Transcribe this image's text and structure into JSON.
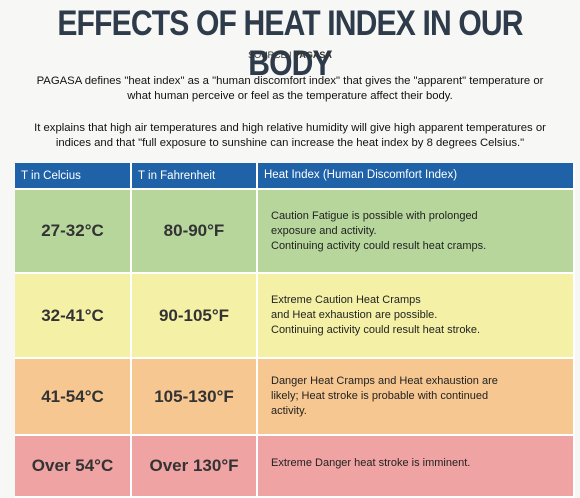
{
  "header": {
    "title": "EFFECTS OF HEAT INDEX IN OUR BODY",
    "source": [
      "SOURCE |",
      "PAGASA"
    ]
  },
  "paragraphs": [
    "PAGASA defines \"heat index\" as a \"human discomfort index\" that gives the \"apparent\" temperature or what human perceive or feel as the temperature affect their body.",
    "It explains that high air temperatures and high relative humidity will give high apparent temperatures or indices and that \"full exposure to sunshine can increase the heat index by 8 degrees Celsius.\""
  ],
  "table": {
    "columns": [
      "T in Celcius",
      "T in Fahrenheit",
      "Heat Index (Human Discomfort Index)"
    ],
    "rows": [
      [
        "27-32°C",
        "80-90°F",
        [
          "Caution Fatigue is possible with prolonged",
          "exposure and activity.",
          "Continuing activity could result heat cramps."
        ]
      ],
      [
        "32-41°C",
        "90-105°F",
        [
          "Extreme Caution Heat Cramps",
          "and Heat exhaustion are possible.",
          "Continuing activity could result heat stroke."
        ]
      ],
      [
        "41-54°C",
        "105-130°F",
        [
          "Danger Heat Cramps and Heat exhaustion are",
          "likely; Heat stroke is probable with continued",
          "activity."
        ]
      ],
      [
        "Over 54°C",
        "Over 130°F",
        [
          "Extreme Danger heat stroke is imminent."
        ]
      ]
    ]
  }
}
